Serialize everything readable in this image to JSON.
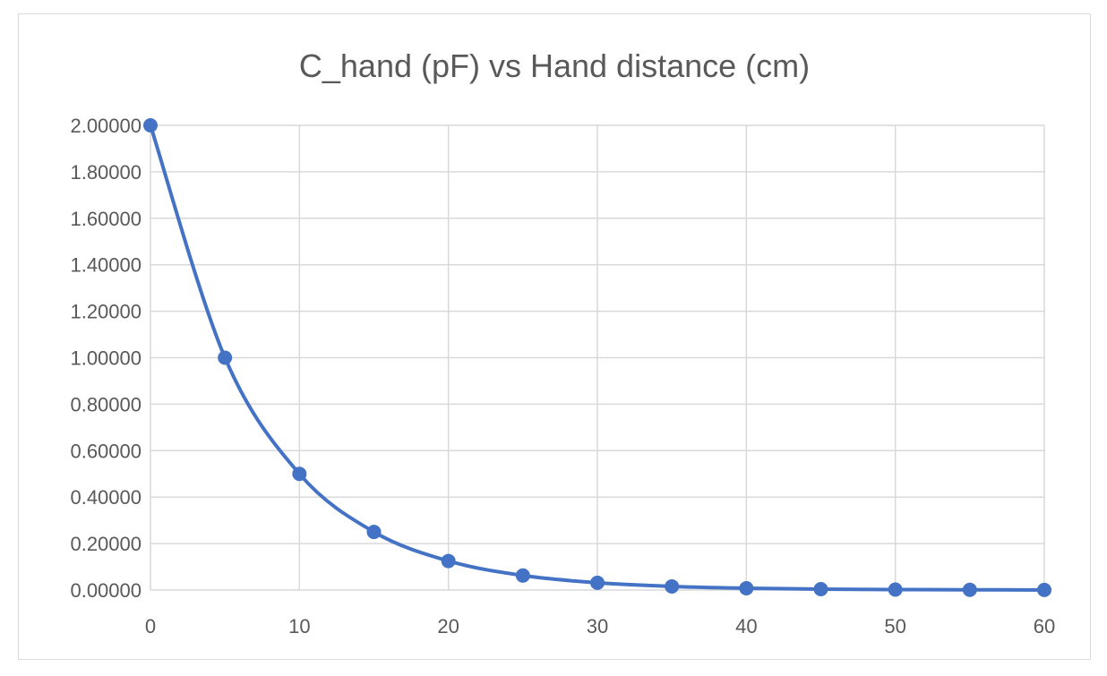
{
  "chart_data": {
    "type": "scatter",
    "title": "C_hand (pF) vs Hand distance (cm)",
    "xlabel": "",
    "ylabel": "",
    "xlim": [
      0,
      60
    ],
    "ylim": [
      0,
      2
    ],
    "x_ticks": [
      0,
      10,
      20,
      30,
      40,
      50,
      60
    ],
    "y_ticks": [
      0,
      0.2,
      0.4,
      0.6,
      0.8,
      1.0,
      1.2,
      1.4,
      1.6,
      1.8,
      2.0
    ],
    "y_tick_labels": [
      "0.00000",
      "0.20000",
      "0.40000",
      "0.60000",
      "0.80000",
      "1.00000",
      "1.20000",
      "1.40000",
      "1.60000",
      "1.80000",
      "2.00000"
    ],
    "x_tick_labels": [
      "0",
      "10",
      "20",
      "30",
      "40",
      "50",
      "60"
    ],
    "grid": true,
    "smooth_line": true,
    "markers": true,
    "series": [
      {
        "color": "#4472c4",
        "x": [
          0,
          5,
          10,
          15,
          20,
          25,
          30,
          35,
          40,
          45,
          50,
          55,
          60
        ],
        "y": [
          2.0,
          1.0,
          0.5,
          0.25,
          0.125,
          0.0625,
          0.03125,
          0.015625,
          0.0078125,
          0.00390625,
          0.001953125,
          0.0009765625,
          0.00048828125
        ]
      }
    ]
  }
}
